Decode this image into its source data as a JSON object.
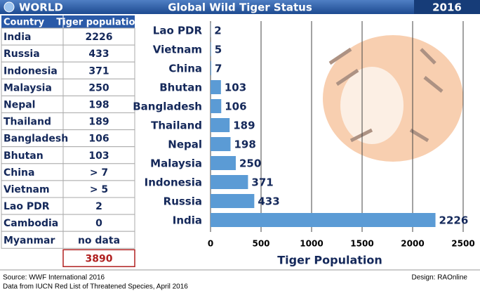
{
  "header": {
    "region": "WORLD",
    "title": "Global Wild Tiger Status",
    "year": "2016"
  },
  "table": {
    "columns": [
      "Country",
      "Tiger population"
    ],
    "rows": [
      [
        "India",
        "2226"
      ],
      [
        "Russia",
        "433"
      ],
      [
        "Indonesia",
        "371"
      ],
      [
        "Malaysia",
        "250"
      ],
      [
        "Nepal",
        "198"
      ],
      [
        "Thailand",
        "189"
      ],
      [
        "Bangladesh",
        "106"
      ],
      [
        "Bhutan",
        "103"
      ],
      [
        "China",
        "> 7"
      ],
      [
        "Vietnam",
        "> 5"
      ],
      [
        "Lao PDR",
        "2"
      ],
      [
        "Cambodia",
        "0"
      ],
      [
        "Myanmar",
        "no data"
      ]
    ],
    "total": "3890"
  },
  "chart_data": {
    "type": "bar",
    "orientation": "horizontal",
    "categories": [
      "Lao PDR",
      "Vietnam",
      "China",
      "Bhutan",
      "Bangladesh",
      "Thailand",
      "Nepal",
      "Malaysia",
      "Indonesia",
      "Russia",
      "India"
    ],
    "values": [
      2,
      5,
      7,
      103,
      106,
      189,
      198,
      250,
      371,
      433,
      2226
    ],
    "color": "#5b9bd5",
    "xlabel": "Tiger Population",
    "xlim": [
      0,
      2500
    ],
    "xticks": [
      0,
      500,
      1000,
      1500,
      2000,
      2500
    ],
    "grid": true
  },
  "footer": {
    "source": "Source: WWF International 2016",
    "data_note": "Data from IUCN Red List of Threatened Species, April 2016",
    "design": "Design:  RAOnline"
  }
}
